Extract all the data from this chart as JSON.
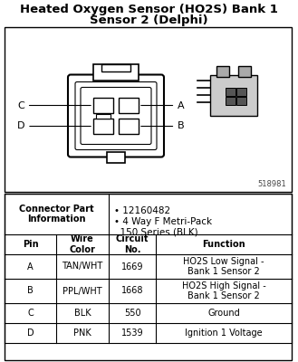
{
  "title_line1": "Heated Oxygen Sensor (HO2S) Bank 1",
  "title_line2": "Sensor 2 (Delphi)",
  "title_fontsize": 9.5,
  "bg_color": "#ffffff",
  "image_number": "518981",
  "connector_part_label": "Connector Part\nInformation",
  "connector_part_info_line1": "• 12160482",
  "connector_part_info_line2": "• 4 Way F Metri-Pack\n  150 Series (BLK)",
  "table_headers": [
    "Pin",
    "Wire\nColor",
    "Circuit\nNo.",
    "Function"
  ],
  "table_rows": [
    [
      "A",
      "TAN/WHT",
      "1669",
      "HO2S Low Signal -\nBank 1 Sensor 2"
    ],
    [
      "B",
      "PPL/WHT",
      "1668",
      "HO2S High Signal -\nBank 1 Sensor 2"
    ],
    [
      "C",
      "BLK",
      "550",
      "Ground"
    ],
    [
      "D",
      "PNK",
      "1539",
      "Ignition 1 Voltage"
    ]
  ]
}
